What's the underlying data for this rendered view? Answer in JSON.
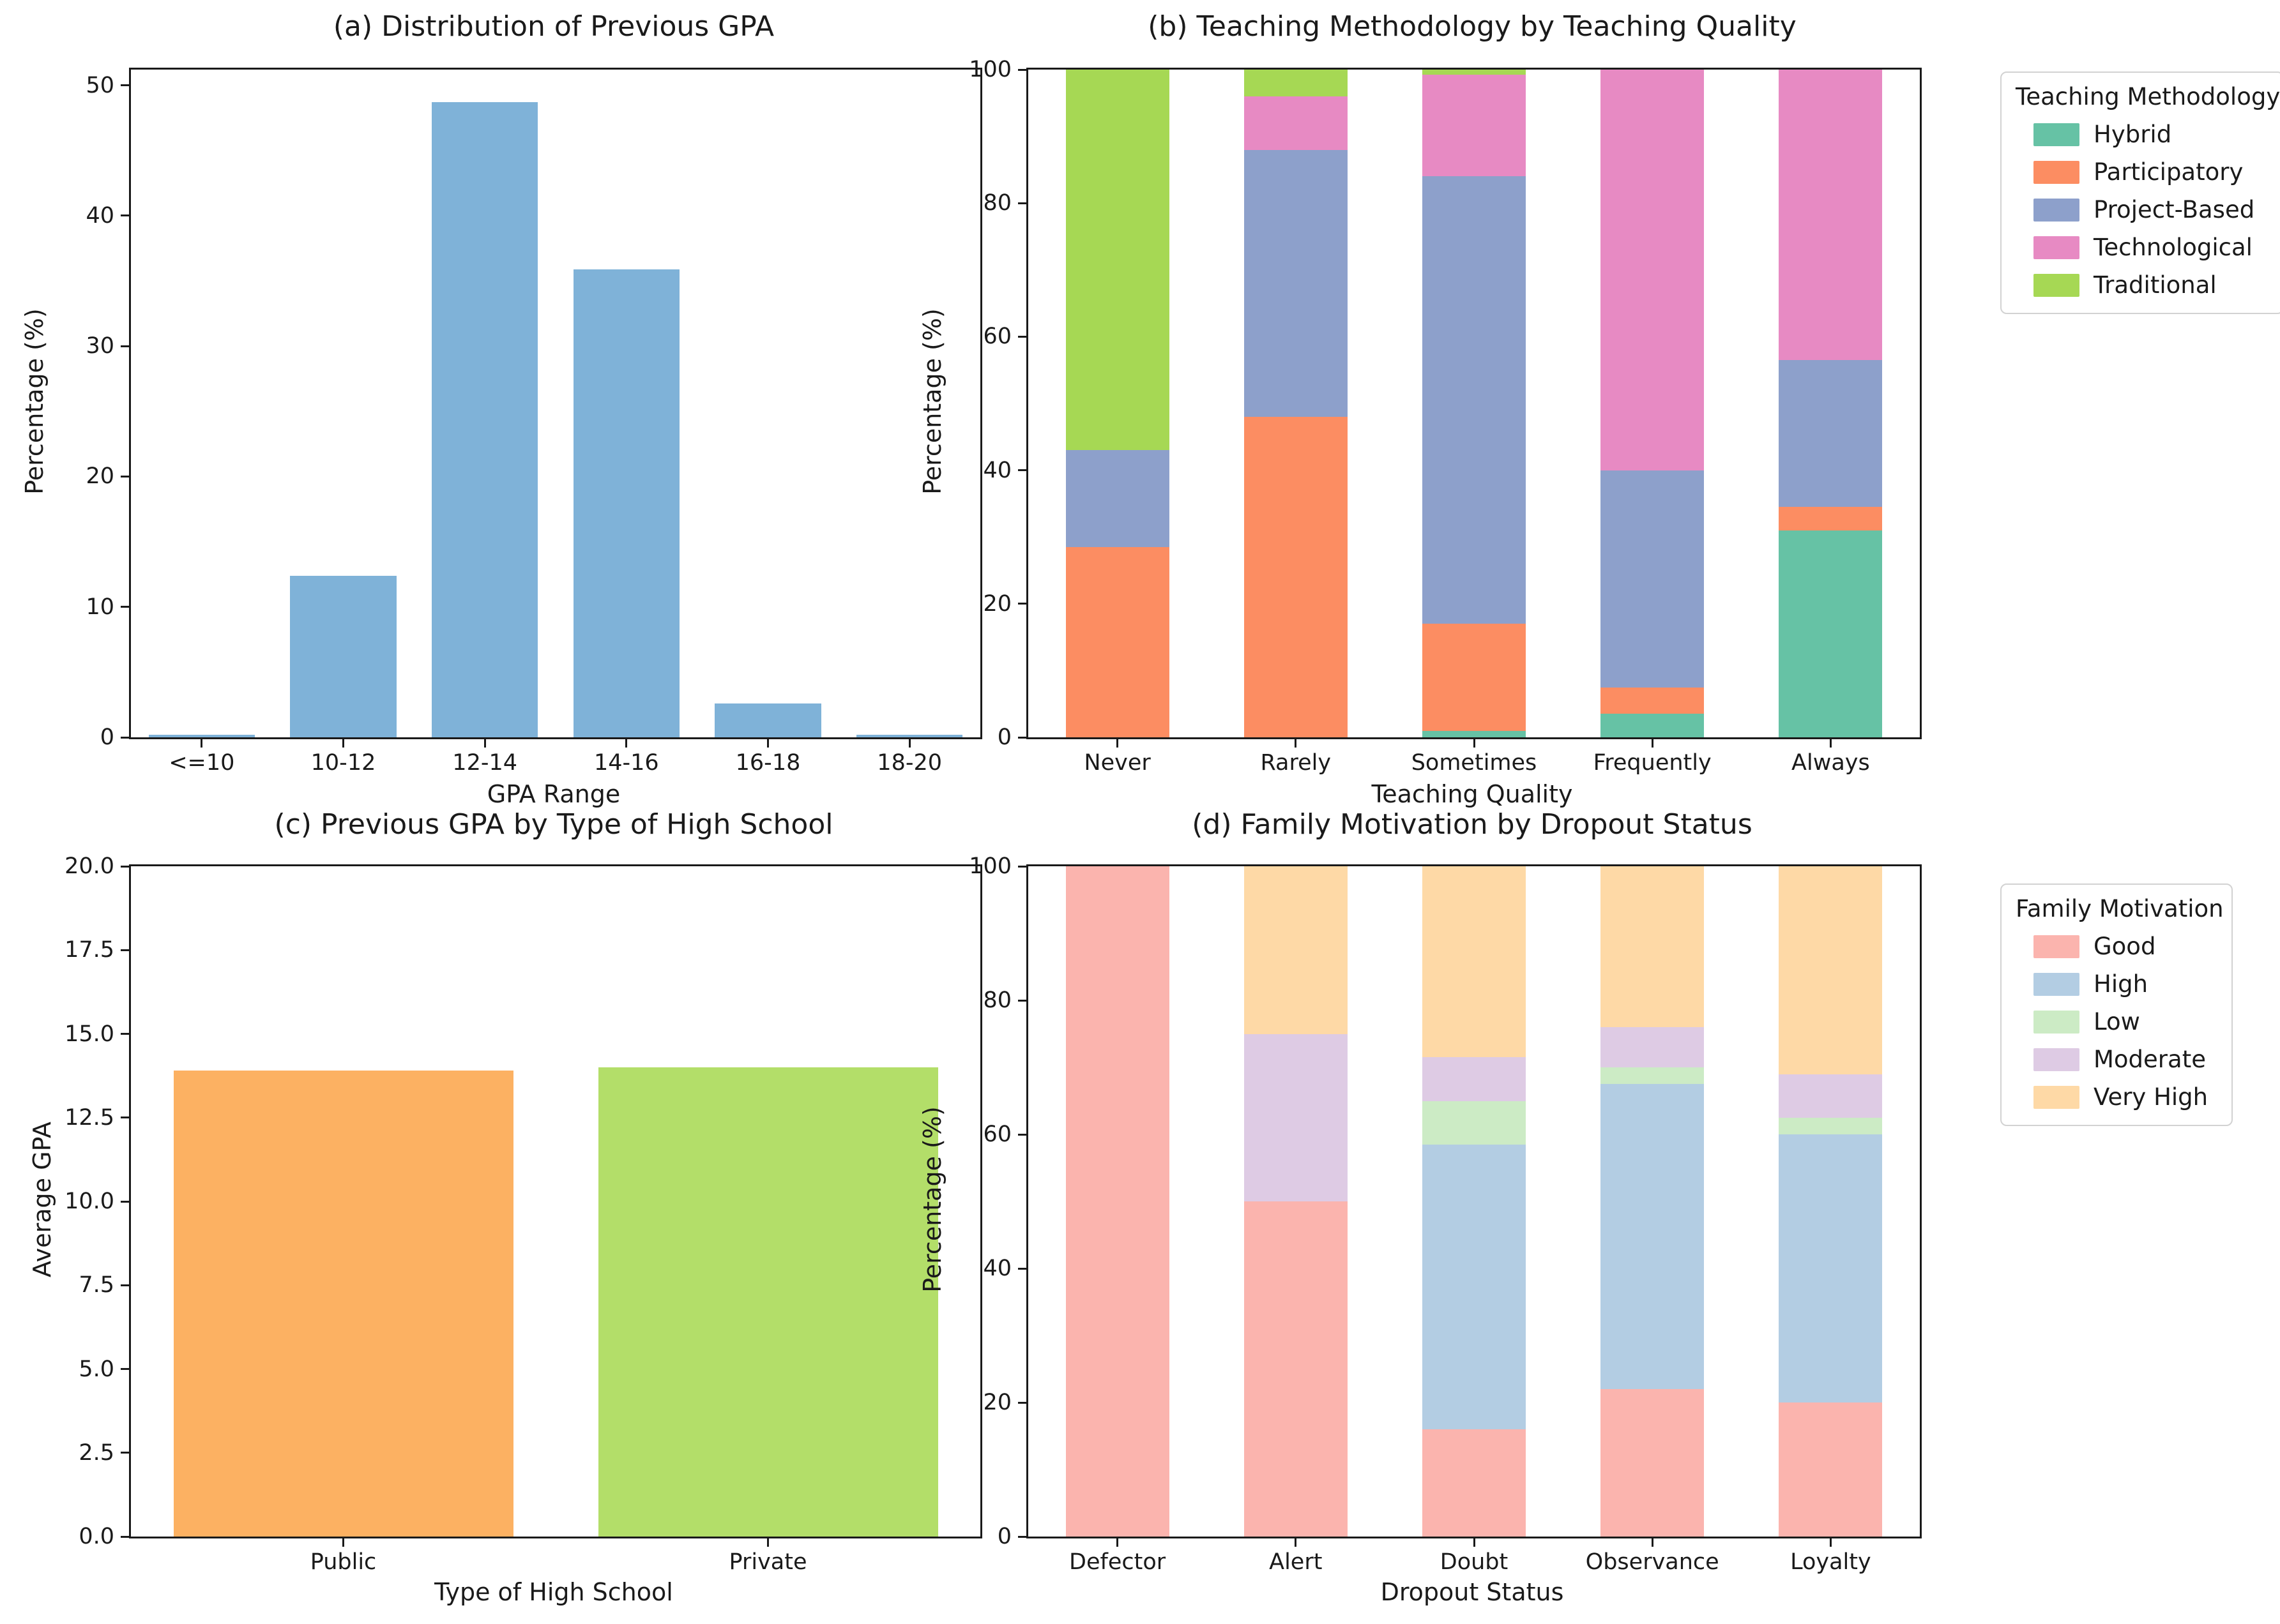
{
  "figure": {
    "background": "#ffffff",
    "text_color": "#1a1a1a",
    "spine_color": "#1a1a1a"
  },
  "chart_data": [
    {
      "panel": "a",
      "type": "bar",
      "title": "(a) Distribution of Previous GPA",
      "xlabel": "GPA Range",
      "ylabel": "Percentage (%)",
      "categories": [
        "<=10",
        "10-12",
        "12-14",
        "14-16",
        "16-18",
        "18-20"
      ],
      "values": [
        0.2,
        12.4,
        48.7,
        35.9,
        2.6,
        0.2
      ],
      "bar_color": "#7fb2d8",
      "ylim": [
        0,
        51.2
      ],
      "yticks": [
        0,
        10,
        20,
        30,
        40,
        50
      ],
      "ytick_labels": [
        "0",
        "10",
        "20",
        "30",
        "40",
        "50"
      ],
      "bar_width_frac": 0.75,
      "grid": false,
      "legend_position": "none"
    },
    {
      "panel": "b",
      "type": "stacked-bar",
      "title": "(b) Teaching Methodology by Teaching Quality",
      "xlabel": "Teaching Quality",
      "ylabel": "Percentage (%)",
      "legend_title": "Teaching Methodology",
      "legend_position": "right",
      "categories": [
        "Never",
        "Rarely",
        "Sometimes",
        "Frequently",
        "Always"
      ],
      "series": [
        {
          "name": "Hybrid",
          "color": "#66c2a5",
          "values": [
            0,
            0,
            1,
            3.5,
            31
          ]
        },
        {
          "name": "Participatory",
          "color": "#fc8d62",
          "values": [
            28.5,
            48,
            16,
            4,
            3.5
          ]
        },
        {
          "name": "Project-Based",
          "color": "#8da0cb",
          "values": [
            14.5,
            40,
            67,
            32.5,
            22
          ]
        },
        {
          "name": "Technological",
          "color": "#e78ac3",
          "values": [
            0,
            8,
            15.2,
            60,
            43.5
          ]
        },
        {
          "name": "Traditional",
          "color": "#a6d854",
          "values": [
            57,
            4,
            0.8,
            0,
            0
          ]
        }
      ],
      "ylim": [
        0,
        100
      ],
      "yticks": [
        0,
        20,
        40,
        60,
        80,
        100
      ],
      "ytick_labels": [
        "0",
        "20",
        "40",
        "60",
        "80",
        "100"
      ],
      "bar_width_frac": 0.58,
      "grid": false
    },
    {
      "panel": "c",
      "type": "bar",
      "title": "(c) Previous GPA by Type of High School",
      "xlabel": "Type of High School",
      "ylabel": "Average GPA",
      "categories": [
        "Public",
        "Private"
      ],
      "values": [
        13.9,
        14.0
      ],
      "bar_colors": [
        "#fcb162",
        "#b3de69"
      ],
      "ylim": [
        0,
        20
      ],
      "yticks": [
        0,
        2.5,
        5,
        7.5,
        10,
        12.5,
        15,
        17.5,
        20
      ],
      "ytick_labels": [
        "0.0",
        "2.5",
        "5.0",
        "7.5",
        "10.0",
        "12.5",
        "15.0",
        "17.5",
        "20.0"
      ],
      "bar_width_frac": 0.8,
      "grid": false,
      "legend_position": "none"
    },
    {
      "panel": "d",
      "type": "stacked-bar",
      "title": "(d) Family Motivation by Dropout Status",
      "xlabel": "Dropout Status",
      "ylabel": "Percentage (%)",
      "legend_title": "Family Motivation",
      "legend_position": "right",
      "categories": [
        "Defector",
        "Alert",
        "Doubt",
        "Observance",
        "Loyalty"
      ],
      "series": [
        {
          "name": "Good",
          "color": "#fbb4ae",
          "values": [
            100,
            50,
            16,
            22,
            20
          ]
        },
        {
          "name": "High",
          "color": "#b3cde3",
          "values": [
            0,
            0,
            42.5,
            45.5,
            40
          ]
        },
        {
          "name": "Low",
          "color": "#ccebc5",
          "values": [
            0,
            0,
            6.5,
            2.5,
            2.5
          ]
        },
        {
          "name": "Moderate",
          "color": "#decbe4",
          "values": [
            0,
            25,
            6.5,
            6,
            6.5
          ]
        },
        {
          "name": "Very High",
          "color": "#fed9a6",
          "values": [
            0,
            25,
            28.5,
            24,
            31
          ]
        }
      ],
      "ylim": [
        0,
        100
      ],
      "yticks": [
        0,
        20,
        40,
        60,
        80,
        100
      ],
      "ytick_labels": [
        "0",
        "20",
        "40",
        "60",
        "80",
        "100"
      ],
      "bar_width_frac": 0.58,
      "grid": false
    }
  ]
}
